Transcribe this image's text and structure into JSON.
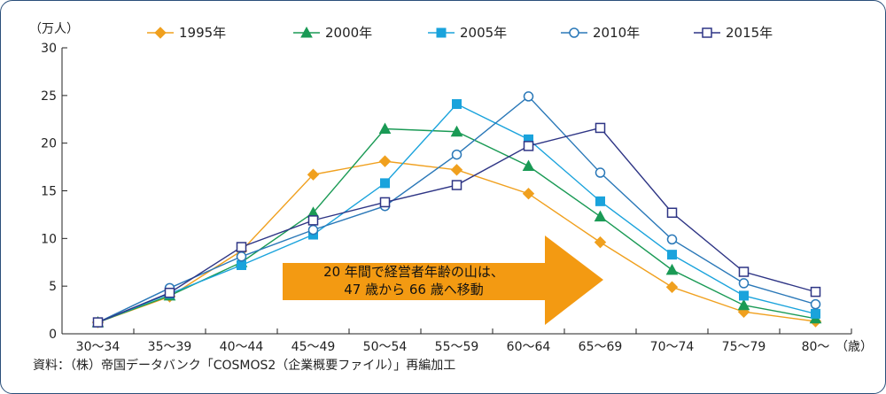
{
  "chart_data": {
    "type": "line",
    "title": "",
    "y_unit": "（万人）",
    "x_unit": "（歳）",
    "ylim": [
      0,
      30
    ],
    "yticks": [
      0,
      5,
      10,
      15,
      20,
      25,
      30
    ],
    "grid": false,
    "legend_position": "top",
    "categories": [
      "30～34",
      "35～39",
      "40～44",
      "45～49",
      "50～54",
      "55～59",
      "60～64",
      "65～69",
      "70～74",
      "75～79",
      "80～"
    ],
    "series": [
      {
        "name": "1995年",
        "color": "#f0a01e",
        "marker": "diamond-filled",
        "values": [
          1.2,
          3.9,
          8.7,
          16.7,
          18.1,
          17.2,
          14.7,
          9.6,
          4.9,
          2.3,
          1.3
        ]
      },
      {
        "name": "2000年",
        "color": "#1a9a55",
        "marker": "triangle-filled",
        "values": [
          1.2,
          4.0,
          7.5,
          12.7,
          21.5,
          21.2,
          17.6,
          12.3,
          6.7,
          3.0,
          1.6
        ]
      },
      {
        "name": "2005年",
        "color": "#1aa3dc",
        "marker": "square-filled",
        "values": [
          1.2,
          4.2,
          7.2,
          10.4,
          15.8,
          24.1,
          20.4,
          13.9,
          8.3,
          4.0,
          2.1
        ]
      },
      {
        "name": "2010年",
        "color": "#2a78b8",
        "marker": "circle-open",
        "values": [
          1.2,
          4.8,
          8.1,
          10.9,
          13.4,
          18.8,
          24.9,
          16.9,
          9.9,
          5.3,
          3.1
        ]
      },
      {
        "name": "2015年",
        "color": "#2e3585",
        "marker": "square-open",
        "values": [
          1.2,
          4.3,
          9.1,
          11.9,
          13.8,
          15.6,
          19.7,
          21.6,
          12.7,
          6.5,
          4.4
        ]
      }
    ],
    "annotation": {
      "line1": "20 年間で経営者年齢の山は、",
      "line2": "47 歳から 66 歳へ移動",
      "arrow_color": "#f39a12"
    },
    "source": "資料：（株）帝国データバンク「COSMOS2（企業概要ファイル）」再編加工"
  }
}
